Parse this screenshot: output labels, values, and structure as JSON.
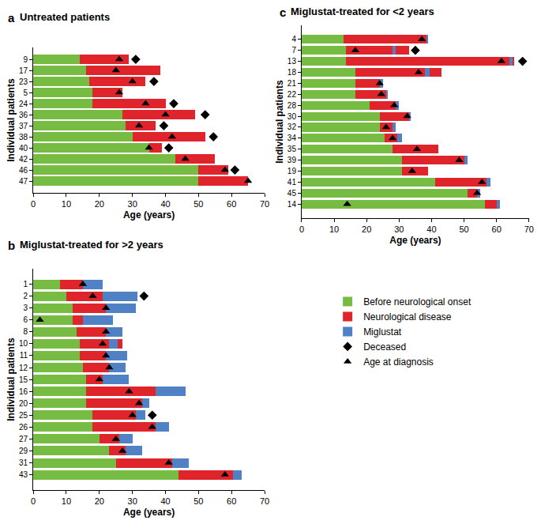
{
  "chart_data": [
    {
      "panel_label": "a",
      "title": "Untreated patients",
      "type": "bar",
      "orientation": "horizontal",
      "stacked": true,
      "grid": false,
      "xlabel": "Age (years)",
      "ylabel": "Individual patients",
      "xlim": [
        0,
        70
      ],
      "xticks": [
        0,
        10,
        20,
        30,
        40,
        50,
        60,
        70
      ],
      "categories": [
        "9",
        "17",
        "23",
        "5",
        "24",
        "36",
        "37",
        "38",
        "40",
        "42",
        "46",
        "47"
      ],
      "series": [
        {
          "name": "Before neurological onset",
          "color": "#76bc43",
          "values": [
            14,
            16,
            17,
            18,
            18,
            27,
            28,
            30,
            35,
            43,
            50,
            50
          ]
        },
        {
          "name": "Neurological disease",
          "color": "#e0242b",
          "values": [
            15,
            22.5,
            17,
            9,
            22,
            22,
            9,
            22,
            4,
            12,
            9,
            15
          ]
        },
        {
          "name": "Deceased",
          "type": "scatter",
          "marker": "diamond",
          "color": "#000000",
          "values": [
            31,
            null,
            36.5,
            null,
            42.5,
            52,
            39.5,
            54.5,
            41,
            null,
            61,
            null
          ]
        },
        {
          "name": "Age at diagnosis",
          "type": "scatter",
          "marker": "triangle",
          "color": "#000000",
          "values": [
            26,
            25,
            30,
            26,
            34,
            40,
            32,
            42,
            35,
            46,
            58,
            65
          ]
        }
      ]
    },
    {
      "panel_label": "b",
      "title": "Miglustat-treated for >2 years",
      "type": "bar",
      "orientation": "horizontal",
      "stacked": true,
      "grid": false,
      "legend": "right",
      "xlabel": "Age (years)",
      "ylabel": "Individual patients",
      "xlim": [
        0,
        70
      ],
      "xticks": [
        0,
        10,
        20,
        30,
        40,
        50,
        60,
        70
      ],
      "categories": [
        "1",
        "2",
        "3",
        "6",
        "8",
        "10",
        "11",
        "12",
        "15",
        "16",
        "20",
        "25",
        "26",
        "27",
        "29",
        "31",
        "43"
      ],
      "series": [
        {
          "name": "Before neurological onset",
          "color": "#76bc43",
          "values": [
            8,
            10,
            12,
            12,
            13,
            14,
            14,
            15,
            16,
            16,
            16,
            18,
            18,
            20,
            23,
            25,
            44
          ]
        },
        {
          "name": "Neurological disease",
          "color": "#e0242b",
          "values": [
            7,
            11,
            10,
            3,
            9,
            9,
            8,
            8,
            5,
            21,
            17,
            13,
            19,
            6,
            5,
            17,
            16.5
          ]
        },
        {
          "name": "Miglustat",
          "color": "#4f81c4",
          "values": [
            6,
            10.5,
            9,
            9,
            5,
            2.5,
            6.5,
            5,
            8,
            9,
            2,
            3,
            4,
            4,
            5,
            5,
            2.5
          ]
        },
        {
          "name": "Neurological disease",
          "color": "#e0242b",
          "values": [
            null,
            null,
            null,
            null,
            null,
            1.5,
            null,
            null,
            null,
            null,
            null,
            null,
            null,
            null,
            null,
            null,
            null
          ]
        },
        {
          "name": "Deceased",
          "type": "scatter",
          "marker": "diamond",
          "color": "#000000",
          "values": [
            null,
            33.5,
            null,
            null,
            null,
            null,
            null,
            null,
            null,
            null,
            null,
            36,
            null,
            null,
            null,
            null,
            null
          ]
        },
        {
          "name": "Age at diagnosis",
          "type": "scatter",
          "marker": "triangle",
          "color": "#000000",
          "values": [
            15,
            18,
            22,
            2,
            22,
            21,
            22,
            23,
            20,
            29,
            32,
            30,
            36,
            25,
            27,
            41,
            58
          ]
        }
      ]
    },
    {
      "panel_label": "c",
      "title": "Miglustat-treated for <2 years",
      "type": "bar",
      "orientation": "horizontal",
      "stacked": true,
      "grid": false,
      "xlabel": "Age (years)",
      "ylabel": "Individual patients",
      "xlim": [
        0,
        70
      ],
      "xticks": [
        0,
        10,
        20,
        30,
        40,
        50,
        60,
        70
      ],
      "categories": [
        "4",
        "7",
        "13",
        "18",
        "21",
        "22",
        "28",
        "30",
        "32",
        "34",
        "35",
        "39",
        "19",
        "41",
        "45",
        "14"
      ],
      "series": [
        {
          "name": "Before neurological onset",
          "color": "#76bc43",
          "values": [
            13,
            13.5,
            13.5,
            16.5,
            16.5,
            16.5,
            21,
            24,
            24,
            25.5,
            28,
            31,
            31,
            41,
            51,
            56.5
          ]
        },
        {
          "name": "Neurological disease",
          "color": "#e0242b",
          "values": [
            25.5,
            14.5,
            50.5,
            21.5,
            7.5,
            9.5,
            8,
            9,
            4,
            4,
            14,
            19,
            8,
            16,
            3,
            3.5
          ]
        },
        {
          "name": "Miglustat",
          "color": "#4f81c4",
          "values": [
            0.5,
            1,
            1,
            1.5,
            1,
            0.5,
            1,
            0.5,
            1,
            1.5,
            null,
            1,
            null,
            1,
            1,
            1
          ]
        },
        {
          "name": "Neurological disease",
          "color": "#e0242b",
          "values": [
            null,
            4,
            0.5,
            3.5,
            null,
            null,
            null,
            null,
            null,
            null,
            null,
            null,
            null,
            null,
            null,
            null
          ]
        },
        {
          "name": "Deceased",
          "type": "scatter",
          "marker": "diamond",
          "color": "#000000",
          "values": [
            null,
            35,
            68,
            null,
            null,
            null,
            null,
            null,
            null,
            null,
            null,
            null,
            null,
            null,
            null,
            null
          ]
        },
        {
          "name": "Age at diagnosis",
          "type": "scatter",
          "marker": "triangle",
          "color": "#000000",
          "values": [
            37,
            16.5,
            61.5,
            36,
            24,
            24.5,
            28.5,
            32.5,
            26,
            28,
            35.5,
            48.5,
            34,
            55.5,
            54,
            14
          ]
        }
      ]
    }
  ]
}
